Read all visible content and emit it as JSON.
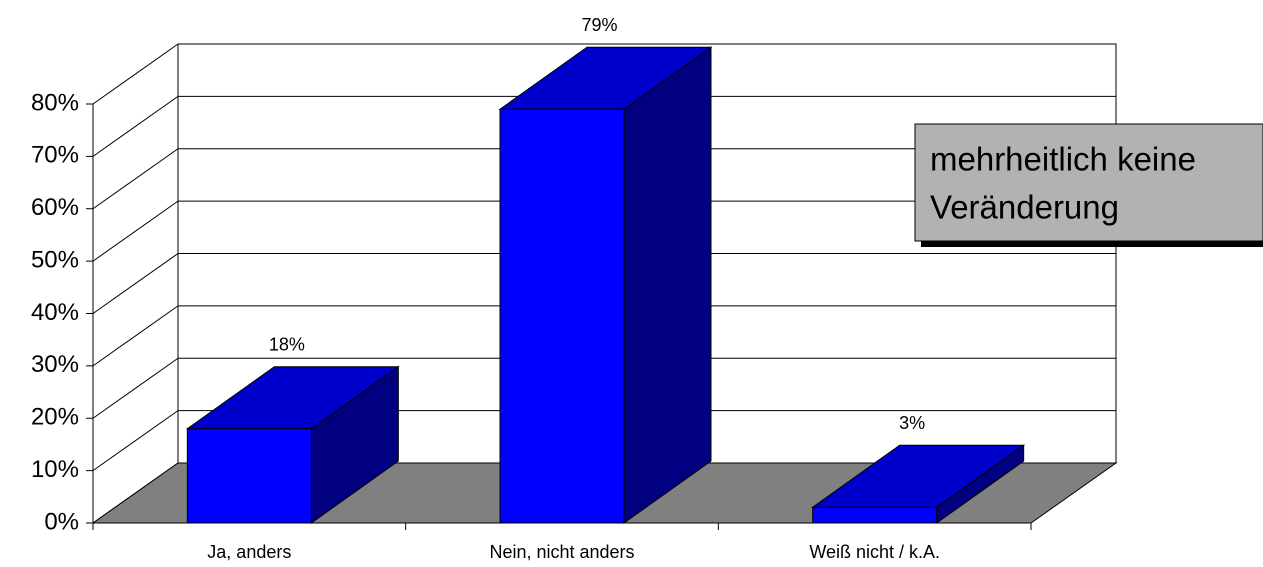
{
  "chart_data": {
    "type": "bar3d",
    "categories": [
      "Ja, anders",
      "Nein, nicht anders",
      "Weiß nicht / k.A."
    ],
    "values": [
      18,
      79,
      3
    ],
    "value_labels": [
      "18%",
      "79%",
      "3%"
    ],
    "color": "#0000ff",
    "ylim": [
      0,
      80
    ],
    "yticks": [
      {
        "value": 0,
        "label": "0%"
      },
      {
        "value": 10,
        "label": "10%"
      },
      {
        "value": 20,
        "label": "20%"
      },
      {
        "value": 30,
        "label": "30%"
      },
      {
        "value": 40,
        "label": "40%"
      },
      {
        "value": 50,
        "label": "50%"
      },
      {
        "value": 60,
        "label": "60%"
      },
      {
        "value": 70,
        "label": "70%"
      },
      {
        "value": 80,
        "label": "80%"
      }
    ],
    "grid": true,
    "annotation": {
      "lines": [
        "mehrheitlich keine",
        "Veränderung"
      ]
    }
  }
}
